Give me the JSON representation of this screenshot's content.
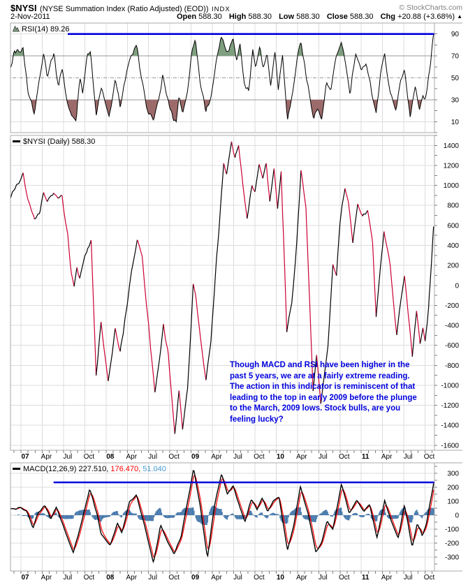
{
  "header": {
    "symbol": "$NYSI",
    "name": "(NYSE Summation Index (Ratio Adjusted) (EOD))",
    "exchange": "INDX",
    "copyright": "© StockCharts.com",
    "date": "2-Nov-2011",
    "quote": {
      "open_label": "Open",
      "open": "588.30",
      "high_label": "High",
      "high": "588.30",
      "low_label": "Low",
      "low": "588.30",
      "close_label": "Close",
      "close": "588.30",
      "chg_label": "Chg",
      "chg": "+20.88 (+3.68%)",
      "direction": "▲"
    }
  },
  "legends": {
    "rsi": "RSI(14) 89.26",
    "price": "$NYSI (Daily) 588.30",
    "macd_label": "MACD(12,26,9)",
    "macd_value": "227.510,",
    "macd_signal": "176.470,",
    "macd_hist": "51.040"
  },
  "annotation": {
    "text": "Though MACD and RSI have been higher in the\npast 5 years, we are at a fairly extreme reading.\nThe action in this indicator is reminiscent of that\nleading to the top in early 2009 before the plunge\nto the March, 2009 lows. Stock bulls, are you\nfeeling lucky?"
  },
  "x_axis": {
    "unit": "months from Jan 2007",
    "range_months": [
      -1.5,
      58.3
    ],
    "ticks": [
      {
        "t": 0,
        "label": "07",
        "bold": true
      },
      {
        "t": 3,
        "label": "Apr"
      },
      {
        "t": 6,
        "label": "Jul"
      },
      {
        "t": 9,
        "label": "Oct"
      },
      {
        "t": 12,
        "label": "08",
        "bold": true
      },
      {
        "t": 15,
        "label": "Apr"
      },
      {
        "t": 18,
        "label": "Jul"
      },
      {
        "t": 21,
        "label": "Oct"
      },
      {
        "t": 24,
        "label": "09",
        "bold": true
      },
      {
        "t": 27,
        "label": "Apr"
      },
      {
        "t": 30,
        "label": "Jul"
      },
      {
        "t": 33,
        "label": "Oct"
      },
      {
        "t": 36,
        "label": "10",
        "bold": true
      },
      {
        "t": 39,
        "label": "Apr"
      },
      {
        "t": 42,
        "label": "Jul"
      },
      {
        "t": 45,
        "label": "Oct"
      },
      {
        "t": 48,
        "label": "11",
        "bold": true
      },
      {
        "t": 51,
        "label": "Apr"
      },
      {
        "t": 54,
        "label": "Jul"
      },
      {
        "t": 57,
        "label": "Oct"
      }
    ]
  },
  "colors": {
    "up": "#000000",
    "down": "#cc0033",
    "rsi_line": "#000000",
    "rsi_fill_high": "#7f9f7f",
    "rsi_fill_low": "#9c6a6a",
    "macd_line": "#000000",
    "signal_line": "#ff0000",
    "histogram": "#4477aa",
    "threshold": "#0000dd",
    "annotation": "#0000dd",
    "legend_hist_value": "#4499cc",
    "copyright": "#808080"
  },
  "chart_data": [
    {
      "panel": "rsi",
      "type": "line",
      "name": "RSI(14)",
      "current": 89.26,
      "ylim": [
        0,
        100
      ],
      "yticks": [
        90,
        70,
        50,
        30,
        10
      ],
      "bands": {
        "overbought": 70,
        "oversold": 30,
        "midline": 50
      },
      "threshold_line": {
        "value": 90,
        "from_month": 6.6
      },
      "points": [
        [
          -1.5,
          58
        ],
        [
          -0.9,
          74
        ],
        [
          0.3,
          76
        ],
        [
          1.0,
          38
        ],
        [
          1.9,
          17
        ],
        [
          2.6,
          50
        ],
        [
          3.2,
          74
        ],
        [
          3.7,
          52
        ],
        [
          4.6,
          73
        ],
        [
          5.3,
          42
        ],
        [
          5.8,
          60
        ],
        [
          6.5,
          28
        ],
        [
          7.1,
          15
        ],
        [
          7.8,
          12
        ],
        [
          8.3,
          52
        ],
        [
          8.7,
          38
        ],
        [
          9.4,
          72
        ],
        [
          9.8,
          76
        ],
        [
          10.6,
          14
        ],
        [
          11.3,
          42
        ],
        [
          12.4,
          13
        ],
        [
          13.3,
          47
        ],
        [
          14.0,
          25
        ],
        [
          14.9,
          55
        ],
        [
          15.6,
          70
        ],
        [
          16.3,
          78
        ],
        [
          17.0,
          52
        ],
        [
          17.7,
          22
        ],
        [
          18.7,
          12
        ],
        [
          19.4,
          28
        ],
        [
          20.0,
          52
        ],
        [
          20.7,
          30
        ],
        [
          21.5,
          13
        ],
        [
          21.9,
          10
        ],
        [
          22.3,
          35
        ],
        [
          22.8,
          16
        ],
        [
          23.5,
          40
        ],
        [
          24.2,
          78
        ],
        [
          24.6,
          85
        ],
        [
          25.3,
          45
        ],
        [
          26.1,
          20
        ],
        [
          26.8,
          33
        ],
        [
          27.5,
          62
        ],
        [
          28.2,
          86
        ],
        [
          28.8,
          78
        ],
        [
          29.3,
          72
        ],
        [
          29.9,
          88
        ],
        [
          30.4,
          68
        ],
        [
          30.9,
          80
        ],
        [
          31.5,
          45
        ],
        [
          32.1,
          38
        ],
        [
          32.7,
          76
        ],
        [
          33.1,
          60
        ],
        [
          33.7,
          80
        ],
        [
          34.2,
          58
        ],
        [
          34.7,
          74
        ],
        [
          35.2,
          42
        ],
        [
          35.8,
          76
        ],
        [
          36.3,
          40
        ],
        [
          36.9,
          72
        ],
        [
          37.6,
          12
        ],
        [
          38.3,
          35
        ],
        [
          39.0,
          70
        ],
        [
          39.5,
          84
        ],
        [
          40.3,
          48
        ],
        [
          41.3,
          14
        ],
        [
          41.8,
          22
        ],
        [
          42.4,
          12
        ],
        [
          43.1,
          45
        ],
        [
          43.7,
          38
        ],
        [
          44.4,
          66
        ],
        [
          45.2,
          84
        ],
        [
          45.8,
          62
        ],
        [
          46.4,
          35
        ],
        [
          47.2,
          72
        ],
        [
          48.0,
          55
        ],
        [
          48.7,
          65
        ],
        [
          49.4,
          40
        ],
        [
          50.1,
          18
        ],
        [
          50.7,
          52
        ],
        [
          51.3,
          72
        ],
        [
          52.1,
          35
        ],
        [
          52.9,
          22
        ],
        [
          53.6,
          48
        ],
        [
          54.1,
          58
        ],
        [
          54.9,
          15
        ],
        [
          55.6,
          42
        ],
        [
          56.2,
          20
        ],
        [
          56.7,
          35
        ],
        [
          57.0,
          28
        ],
        [
          57.6,
          55
        ],
        [
          58.2,
          89.26
        ]
      ]
    },
    {
      "panel": "price",
      "type": "line",
      "name": "$NYSI Daily",
      "current": 588.3,
      "ylim": [
        -1650,
        1500
      ],
      "yticks": [
        1400,
        1200,
        1000,
        800,
        600,
        400,
        200,
        0,
        -200,
        -400,
        -600,
        -800,
        -1000,
        -1200,
        -1400,
        -1600
      ],
      "points": [
        [
          -1.5,
          880
        ],
        [
          -0.9,
          980
        ],
        [
          0.3,
          1105
        ],
        [
          1.0,
          870
        ],
        [
          1.9,
          650
        ],
        [
          2.6,
          725
        ],
        [
          3.2,
          920
        ],
        [
          3.7,
          825
        ],
        [
          4.6,
          935
        ],
        [
          5.2,
          855
        ],
        [
          5.8,
          890
        ],
        [
          6.6,
          500
        ],
        [
          7.1,
          120
        ],
        [
          7.5,
          -30
        ],
        [
          7.9,
          170
        ],
        [
          8.3,
          60
        ],
        [
          9.4,
          390
        ],
        [
          9.9,
          440
        ],
        [
          10.6,
          -900
        ],
        [
          11.3,
          -370
        ],
        [
          12.3,
          -980
        ],
        [
          13.3,
          -440
        ],
        [
          14.0,
          -670
        ],
        [
          14.8,
          -280
        ],
        [
          15.6,
          150
        ],
        [
          16.4,
          450
        ],
        [
          17.1,
          300
        ],
        [
          17.7,
          -180
        ],
        [
          18.9,
          -1070
        ],
        [
          19.6,
          -700
        ],
        [
          20.1,
          -400
        ],
        [
          20.8,
          -700
        ],
        [
          21.7,
          -1480
        ],
        [
          22.3,
          -1070
        ],
        [
          22.8,
          -1440
        ],
        [
          23.5,
          -1050
        ],
        [
          24.3,
          0
        ],
        [
          24.7,
          -140
        ],
        [
          25.3,
          -500
        ],
        [
          26.1,
          -950
        ],
        [
          26.8,
          -550
        ],
        [
          27.4,
          80
        ],
        [
          28.0,
          640
        ],
        [
          28.6,
          1225
        ],
        [
          29.0,
          1120
        ],
        [
          29.7,
          1445
        ],
        [
          30.2,
          1280
        ],
        [
          30.7,
          1410
        ],
        [
          31.3,
          1000
        ],
        [
          31.9,
          690
        ],
        [
          32.6,
          1005
        ],
        [
          33.0,
          930
        ],
        [
          33.6,
          1230
        ],
        [
          34.1,
          1090
        ],
        [
          34.6,
          1215
        ],
        [
          35.1,
          830
        ],
        [
          35.7,
          1180
        ],
        [
          36.2,
          760
        ],
        [
          36.7,
          1150
        ],
        [
          37.5,
          -460
        ],
        [
          38.2,
          -170
        ],
        [
          38.9,
          430
        ],
        [
          39.5,
          1145
        ],
        [
          40.2,
          780
        ],
        [
          41.2,
          -1060
        ],
        [
          41.7,
          -700
        ],
        [
          42.3,
          -1205
        ],
        [
          43.3,
          -600
        ],
        [
          44.0,
          205
        ],
        [
          44.5,
          90
        ],
        [
          45.0,
          640
        ],
        [
          45.7,
          975
        ],
        [
          46.2,
          820
        ],
        [
          46.8,
          410
        ],
        [
          47.5,
          830
        ],
        [
          48.2,
          690
        ],
        [
          48.9,
          765
        ],
        [
          49.6,
          430
        ],
        [
          50.1,
          -330
        ],
        [
          50.7,
          175
        ],
        [
          51.2,
          560
        ],
        [
          52.1,
          185
        ],
        [
          53.0,
          -500
        ],
        [
          53.7,
          -85
        ],
        [
          54.1,
          95
        ],
        [
          54.8,
          -390
        ],
        [
          55.2,
          -705
        ],
        [
          55.8,
          -255
        ],
        [
          56.3,
          -590
        ],
        [
          56.7,
          -430
        ],
        [
          57.0,
          -560
        ],
        [
          57.5,
          -230
        ],
        [
          58.2,
          588.3
        ]
      ]
    },
    {
      "panel": "macd",
      "type": "macd",
      "name": "MACD(12,26,9)",
      "macd_current": 227.51,
      "signal_current": 176.47,
      "hist_current": 51.04,
      "ylim": [
        -400,
        375
      ],
      "yticks": [
        300,
        200,
        100,
        0,
        -100,
        -200,
        -300
      ],
      "threshold_line": {
        "value": 235,
        "from_month": 4.6
      },
      "points": [
        [
          -1.5,
          40
        ],
        [
          0.0,
          55
        ],
        [
          0.8,
          25
        ],
        [
          1.7,
          -90
        ],
        [
          2.4,
          15
        ],
        [
          3.4,
          70
        ],
        [
          4.2,
          -25
        ],
        [
          5.0,
          60
        ],
        [
          6.3,
          -125
        ],
        [
          7.4,
          -265
        ],
        [
          8.5,
          -60
        ],
        [
          9.7,
          190
        ],
        [
          10.7,
          15
        ],
        [
          11.3,
          -130
        ],
        [
          12.6,
          -220
        ],
        [
          13.6,
          -60
        ],
        [
          14.2,
          -130
        ],
        [
          15.3,
          90
        ],
        [
          16.3,
          150
        ],
        [
          17.5,
          -90
        ],
        [
          18.7,
          -340
        ],
        [
          19.7,
          -70
        ],
        [
          20.7,
          -190
        ],
        [
          21.6,
          -275
        ],
        [
          22.6,
          -150
        ],
        [
          24.35,
          335
        ],
        [
          25.3,
          60
        ],
        [
          26.3,
          -300
        ],
        [
          27.3,
          70
        ],
        [
          28.3,
          300
        ],
        [
          29.1,
          150
        ],
        [
          29.9,
          215
        ],
        [
          30.9,
          50
        ],
        [
          31.6,
          -40
        ],
        [
          32.5,
          115
        ],
        [
          33.3,
          40
        ],
        [
          34.0,
          125
        ],
        [
          34.8,
          25
        ],
        [
          35.6,
          100
        ],
        [
          36.4,
          125
        ],
        [
          37.6,
          -250
        ],
        [
          38.5,
          -70
        ],
        [
          39.4,
          205
        ],
        [
          40.5,
          10
        ],
        [
          41.6,
          -270
        ],
        [
          42.4,
          -190
        ],
        [
          43.2,
          -40
        ],
        [
          44.0,
          -100
        ],
        [
          45.2,
          220
        ],
        [
          46.3,
          20
        ],
        [
          47.4,
          105
        ],
        [
          48.4,
          30
        ],
        [
          49.2,
          75
        ],
        [
          50.2,
          -160
        ],
        [
          51.3,
          105
        ],
        [
          52.2,
          -40
        ],
        [
          53.2,
          -165
        ],
        [
          54.1,
          75
        ],
        [
          55.2,
          -230
        ],
        [
          55.9,
          -60
        ],
        [
          56.6,
          -145
        ],
        [
          57.2,
          -55
        ],
        [
          58.2,
          228
        ]
      ]
    }
  ]
}
